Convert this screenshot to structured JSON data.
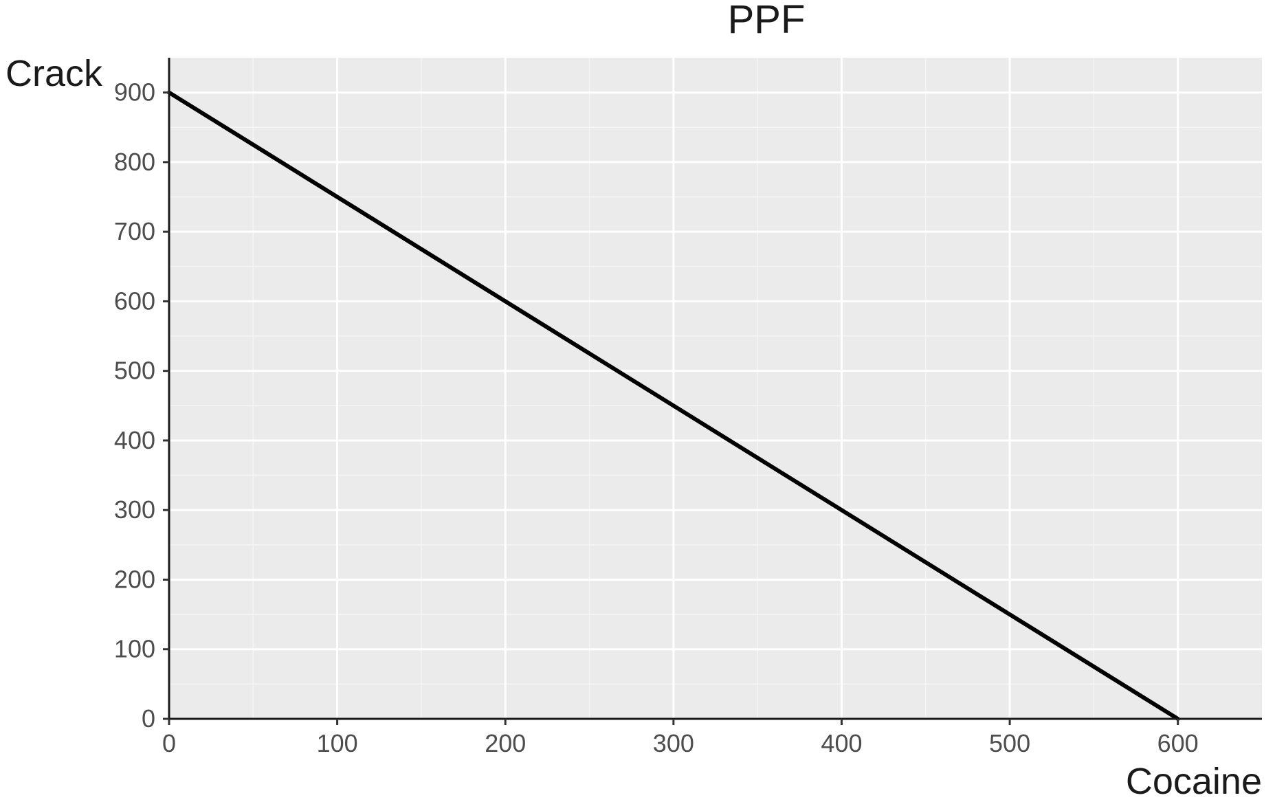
{
  "chart_data": {
    "type": "line",
    "title": "PPF",
    "xlabel": "Cocaine",
    "ylabel": "Crack",
    "xlim": [
      0,
      650
    ],
    "ylim": [
      0,
      950
    ],
    "x_ticks": [
      0,
      100,
      200,
      300,
      400,
      500,
      600
    ],
    "y_ticks": [
      0,
      100,
      200,
      300,
      400,
      500,
      600,
      700,
      800,
      900
    ],
    "x_tick_labels": [
      "0",
      "100",
      "200",
      "300",
      "400",
      "500",
      "600"
    ],
    "y_tick_labels": [
      "0",
      "100",
      "200",
      "300",
      "400",
      "500",
      "600",
      "700",
      "800",
      "900"
    ],
    "grid": true,
    "legend": "none",
    "series": [
      {
        "x": [
          0,
          600
        ],
        "y": [
          900,
          0
        ]
      }
    ],
    "colors": {
      "panel_background": "#ebebeb",
      "grid_major": "#ffffff",
      "grid_minor": "#f5f5f5",
      "line": "#000000",
      "axis_line": "#1a1a1a"
    }
  }
}
